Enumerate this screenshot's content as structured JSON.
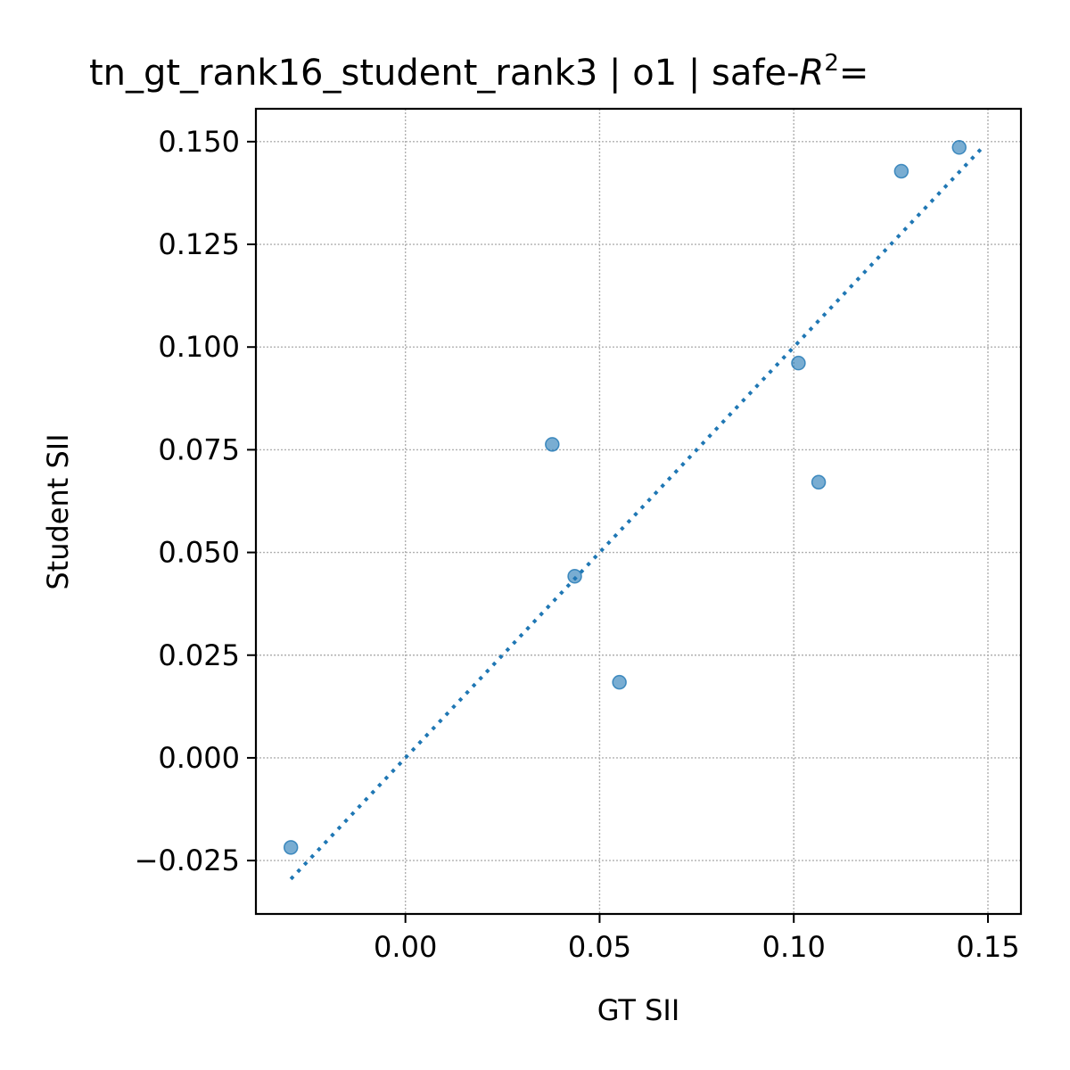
{
  "chart_data": {
    "type": "scatter",
    "title_prefix": "tn_gt_rank16_student_rank3 | o1 | safe-",
    "title_r": "R",
    "title_sup": "2",
    "title_eq": "=",
    "xlabel": "GT SII",
    "ylabel": "Student SII",
    "xlim": [
      -0.0385,
      0.1585
    ],
    "ylim": [
      -0.038,
      0.158
    ],
    "xticks": [
      0.0,
      0.05,
      0.1,
      0.15
    ],
    "xtick_labels": [
      "0.00",
      "0.05",
      "0.10",
      "0.15"
    ],
    "yticks": [
      -0.025,
      0.0,
      0.025,
      0.05,
      0.075,
      0.1,
      0.125,
      0.15
    ],
    "ytick_labels": [
      "−0.025",
      "0.000",
      "0.025",
      "0.050",
      "0.075",
      "0.100",
      "0.125",
      "0.150"
    ],
    "grid": true,
    "points": [
      {
        "x": -0.0295,
        "y": -0.0218
      },
      {
        "x": 0.0378,
        "y": 0.0763
      },
      {
        "x": 0.0436,
        "y": 0.0442
      },
      {
        "x": 0.0551,
        "y": 0.0184
      },
      {
        "x": 0.1012,
        "y": 0.0961
      },
      {
        "x": 0.1064,
        "y": 0.0671
      },
      {
        "x": 0.1277,
        "y": 0.1428
      },
      {
        "x": 0.1426,
        "y": 0.1486
      }
    ],
    "reference_line": {
      "x": [
        -0.0295,
        0.1486
      ],
      "y": [
        -0.0295,
        0.1486
      ],
      "style": "dotted"
    },
    "colors": {
      "points": "#1f77b4",
      "line": "#1f77b4",
      "grid": "#b0b0b0"
    }
  }
}
